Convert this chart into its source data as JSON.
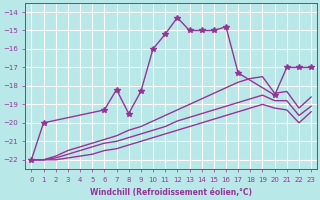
{
  "background_color": "#b8e8e8",
  "grid_color": "#ffffff",
  "line_color": "#993399",
  "xlabel": "Windchill (Refroidissement éolien,°C)",
  "xlim": [
    -0.5,
    23.5
  ],
  "ylim": [
    -22.5,
    -13.5
  ],
  "yticks": [
    -22,
    -21,
    -20,
    -19,
    -18,
    -17,
    -16,
    -15,
    -14
  ],
  "xticks": [
    0,
    1,
    2,
    3,
    4,
    5,
    6,
    7,
    8,
    9,
    10,
    11,
    12,
    13,
    14,
    15,
    16,
    17,
    18,
    19,
    20,
    21,
    22,
    23
  ],
  "series": [
    {
      "x": [
        0,
        1,
        6,
        7,
        8,
        9,
        10,
        11,
        12,
        13,
        14,
        15,
        16,
        17,
        20,
        21,
        22,
        23
      ],
      "y": [
        -22.0,
        -20.0,
        -19.3,
        -18.2,
        -19.5,
        -18.3,
        -16.0,
        -15.2,
        -14.3,
        -15.0,
        -15.0,
        -15.0,
        -14.8,
        -17.3,
        -18.5,
        -17.0,
        -17.0,
        -17.0
      ],
      "marker": "*",
      "markersize": 4,
      "linewidth": 1.0
    },
    {
      "x": [
        0,
        1,
        2,
        3,
        4,
        5,
        6,
        7,
        8,
        9,
        10,
        11,
        12,
        13,
        14,
        15,
        16,
        17,
        18,
        19,
        20,
        21,
        22,
        23
      ],
      "y": [
        -22.0,
        -22.0,
        -21.8,
        -21.5,
        -21.3,
        -21.1,
        -20.9,
        -20.7,
        -20.4,
        -20.2,
        -19.9,
        -19.6,
        -19.3,
        -19.0,
        -18.7,
        -18.4,
        -18.1,
        -17.8,
        -17.6,
        -17.5,
        -18.4,
        -18.3,
        -19.2,
        -18.6
      ],
      "marker": null,
      "markersize": 0,
      "linewidth": 1.0
    },
    {
      "x": [
        0,
        1,
        2,
        3,
        4,
        5,
        6,
        7,
        8,
        9,
        10,
        11,
        12,
        13,
        14,
        15,
        16,
        17,
        18,
        19,
        20,
        21,
        22,
        23
      ],
      "y": [
        -22.0,
        -22.0,
        -21.9,
        -21.7,
        -21.5,
        -21.3,
        -21.1,
        -21.0,
        -20.8,
        -20.6,
        -20.4,
        -20.2,
        -19.9,
        -19.7,
        -19.5,
        -19.3,
        -19.1,
        -18.9,
        -18.7,
        -18.5,
        -18.8,
        -18.8,
        -19.6,
        -19.1
      ],
      "marker": null,
      "markersize": 0,
      "linewidth": 1.0
    },
    {
      "x": [
        0,
        1,
        2,
        3,
        4,
        5,
        6,
        7,
        8,
        9,
        10,
        11,
        12,
        13,
        14,
        15,
        16,
        17,
        18,
        19,
        20,
        21,
        22,
        23
      ],
      "y": [
        -22.0,
        -22.0,
        -22.0,
        -21.9,
        -21.8,
        -21.7,
        -21.5,
        -21.4,
        -21.2,
        -21.0,
        -20.8,
        -20.6,
        -20.4,
        -20.2,
        -20.0,
        -19.8,
        -19.6,
        -19.4,
        -19.2,
        -19.0,
        -19.2,
        -19.3,
        -20.0,
        -19.4
      ],
      "marker": null,
      "markersize": 0,
      "linewidth": 1.0
    }
  ],
  "tick_labelsize": 5,
  "xlabel_fontsize": 5.5,
  "xlabel_fontweight": "bold"
}
